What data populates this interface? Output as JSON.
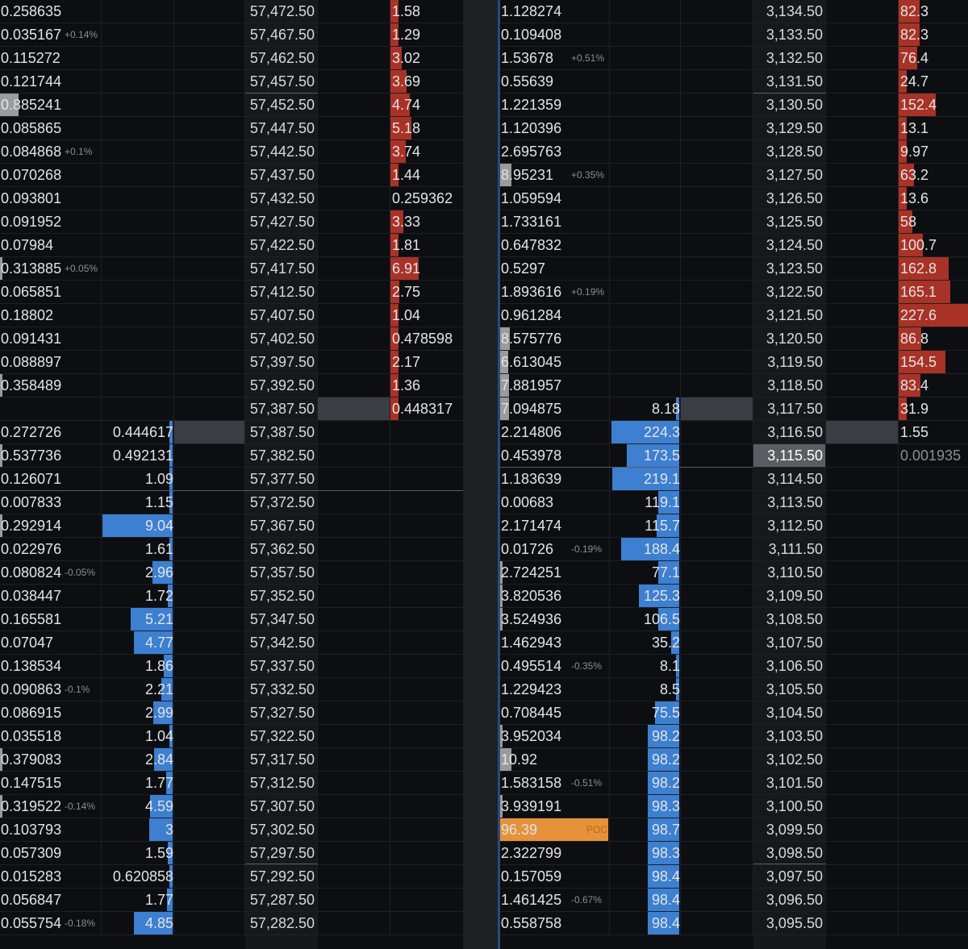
{
  "panels": [
    {
      "id": "left",
      "rows": [
        {
          "vol": "0.258635",
          "vol_pct": "",
          "bid": "",
          "price": "57,472.50",
          "ask": "1.58",
          "ask_frac": 0.05
        },
        {
          "vol": "0.035167",
          "vol_pct": "+0.14%",
          "bid": "",
          "price": "57,467.50",
          "ask": "1.29",
          "ask_frac": 0.04
        },
        {
          "vol": "0.115272",
          "vol_pct": "",
          "bid": "",
          "price": "57,462.50",
          "ask": "3.02",
          "ask_frac": 0.16
        },
        {
          "vol": "0.121744",
          "vol_pct": "",
          "bid": "",
          "price": "57,457.50",
          "ask": "3.69",
          "ask_frac": 0.22
        },
        {
          "vol": "0.885241",
          "vol_pct": "",
          "vol_frac": 0.18,
          "bid": "",
          "price": "57,452.50",
          "ask": "4.74",
          "ask_frac": 0.27
        },
        {
          "vol": "0.085865",
          "vol_pct": "",
          "bid": "",
          "price": "57,447.50",
          "ask": "5.18",
          "ask_frac": 0.29
        },
        {
          "vol": "0.084868",
          "vol_pct": "+0.1%",
          "bid": "",
          "price": "57,442.50",
          "ask": "3.74",
          "ask_frac": 0.21
        },
        {
          "vol": "0.070268",
          "vol_pct": "",
          "bid": "",
          "price": "57,437.50",
          "ask": "1.44",
          "ask_frac": 0.05
        },
        {
          "vol": "0.093801",
          "vol_pct": "",
          "bid": "",
          "price": "57,432.50",
          "ask": "0.259362",
          "ask_frac": 0
        },
        {
          "vol": "0.091952",
          "vol_pct": "",
          "bid": "",
          "price": "57,427.50",
          "ask": "3.33",
          "ask_frac": 0.18
        },
        {
          "vol": "0.07984",
          "vol_pct": "",
          "bid": "",
          "price": "57,422.50",
          "ask": "1.81",
          "ask_frac": 0.07
        },
        {
          "vol": "0.313885",
          "vol_pct": "+0.05%",
          "vol_frac": 0.02,
          "bid": "",
          "price": "57,417.50",
          "ask": "6.91",
          "ask_frac": 0.39
        },
        {
          "vol": "0.065851",
          "vol_pct": "",
          "bid": "",
          "price": "57,412.50",
          "ask": "2.75",
          "ask_frac": 0.12
        },
        {
          "vol": "0.18802",
          "vol_pct": "",
          "bid": "",
          "price": "57,407.50",
          "ask": "1.04",
          "ask_frac": 0.03
        },
        {
          "vol": "0.091431",
          "vol_pct": "",
          "bid": "",
          "price": "57,402.50",
          "ask": "0.478598",
          "ask_frac": 0.02
        },
        {
          "vol": "0.088897",
          "vol_pct": "",
          "bid": "",
          "price": "57,397.50",
          "ask": "2.17",
          "ask_frac": 0.11
        },
        {
          "vol": "0.358489",
          "vol_pct": "",
          "vol_frac": 0.02,
          "bid": "",
          "price": "57,392.50",
          "ask": "1.36",
          "ask_frac": 0.06
        },
        {
          "vol": "",
          "vol_pct": "",
          "bid": "",
          "price": "57,387.50",
          "ask": "0.448317",
          "ask_frac": 0.02,
          "ask_cursor": true
        },
        {
          "vol": "0.272726",
          "vol_pct": "",
          "bid": "0.444617",
          "bid_frac": 0.02,
          "bid_cursor": true,
          "price": "57,387.50",
          "ask": ""
        },
        {
          "vol": "0.537736",
          "vol_pct": "",
          "vol_frac": 0.02,
          "bid": "0.492131",
          "bid_frac": 0.02,
          "price": "57,382.50",
          "ask": ""
        },
        {
          "vol": "0.126071",
          "vol_pct": "",
          "bid": "1.09",
          "bid_frac": 0.03,
          "price": "57,377.50",
          "ask": ""
        },
        {
          "vol": "0.007833",
          "vol_pct": "",
          "bid": "1.15",
          "bid_frac": 0.03,
          "price": "57,372.50",
          "ask": ""
        },
        {
          "vol": "0.292914",
          "vol_pct": "",
          "vol_frac": 0.02,
          "bid": "9.04",
          "bid_frac": 0.99,
          "price": "57,367.50",
          "ask": ""
        },
        {
          "vol": "0.022976",
          "vol_pct": "",
          "bid": "1.61",
          "bid_frac": 0.04,
          "price": "57,362.50",
          "ask": ""
        },
        {
          "vol": "0.080824",
          "vol_pct": "-0.05%",
          "bid": "2.96",
          "bid_frac": 0.28,
          "price": "57,357.50",
          "ask": ""
        },
        {
          "vol": "0.038447",
          "vol_pct": "",
          "bid": "1.72",
          "bid_frac": 0.07,
          "price": "57,352.50",
          "ask": ""
        },
        {
          "vol": "0.165581",
          "vol_pct": "",
          "bid": "5.21",
          "bid_frac": 0.59,
          "price": "57,347.50",
          "ask": ""
        },
        {
          "vol": "0.07047",
          "vol_pct": "",
          "bid": "4.77",
          "bid_frac": 0.55,
          "price": "57,342.50",
          "ask": ""
        },
        {
          "vol": "0.138534",
          "vol_pct": "",
          "bid": "1.86",
          "bid_frac": 0.12,
          "price": "57,337.50",
          "ask": ""
        },
        {
          "vol": "0.090863",
          "vol_pct": "-0.1%",
          "bid": "2.21",
          "bid_frac": 0.16,
          "price": "57,332.50",
          "ask": ""
        },
        {
          "vol": "0.086915",
          "vol_pct": "",
          "bid": "2.99",
          "bid_frac": 0.27,
          "price": "57,327.50",
          "ask": ""
        },
        {
          "vol": "0.035518",
          "vol_pct": "",
          "bid": "1.04",
          "bid_frac": 0.03,
          "price": "57,322.50",
          "ask": ""
        },
        {
          "vol": "0.379083",
          "vol_pct": "",
          "vol_frac": 0.02,
          "bid": "2.84",
          "bid_frac": 0.26,
          "price": "57,317.50",
          "ask": ""
        },
        {
          "vol": "0.147515",
          "vol_pct": "",
          "bid": "1.77",
          "bid_frac": 0.09,
          "price": "57,312.50",
          "ask": ""
        },
        {
          "vol": "0.319522",
          "vol_pct": "-0.14%",
          "vol_frac": 0.02,
          "bid": "4.59",
          "bid_frac": 0.32,
          "price": "57,307.50",
          "ask": ""
        },
        {
          "vol": "0.103793",
          "vol_pct": "",
          "bid": "3",
          "bid_frac": 0.33,
          "price": "57,302.50",
          "ask": ""
        },
        {
          "vol": "0.057309",
          "vol_pct": "",
          "bid": "1.59",
          "bid_frac": 0.07,
          "price": "57,297.50",
          "ask": ""
        },
        {
          "vol": "0.015283",
          "vol_pct": "",
          "bid": "0.620858",
          "bid_frac": 0.02,
          "price": "57,292.50",
          "ask": ""
        },
        {
          "vol": "0.056847",
          "vol_pct": "",
          "bid": "1.77",
          "bid_frac": 0.08,
          "price": "57,287.50",
          "ask": ""
        },
        {
          "vol": "0.055754",
          "vol_pct": "-0.18%",
          "bid": "4.85",
          "bid_frac": 0.55,
          "price": "57,282.50",
          "ask": ""
        }
      ]
    },
    {
      "id": "right",
      "rows": [
        {
          "vol": "1.128274",
          "vol_pct": "",
          "bid": "",
          "price": "3,134.50",
          "ask": "82.3",
          "ask_frac": 0.3
        },
        {
          "vol": "0.109408",
          "vol_pct": "",
          "bid": "",
          "price": "3,133.50",
          "ask": "82.3",
          "ask_frac": 0.3
        },
        {
          "vol": "1.53678",
          "vol_pct": "+0.51%",
          "bid": "",
          "price": "3,132.50",
          "ask": "76.4",
          "ask_frac": 0.27
        },
        {
          "vol": "0.55639",
          "vol_pct": "",
          "bid": "",
          "price": "3,131.50",
          "ask": "24.7",
          "ask_frac": 0.06
        },
        {
          "vol": "1.221359",
          "vol_pct": "",
          "bid": "",
          "price": "3,130.50",
          "ask": "152.4",
          "ask_frac": 0.54
        },
        {
          "vol": "1.120396",
          "vol_pct": "",
          "bid": "",
          "price": "3,129.50",
          "ask": "13.1",
          "ask_frac": 0.03
        },
        {
          "vol": "2.695763",
          "vol_pct": "",
          "bid": "",
          "price": "3,128.50",
          "ask": "9.97",
          "ask_frac": 0.02
        },
        {
          "vol": "8.95231",
          "vol_pct": "+0.35%",
          "vol_frac": 0.1,
          "bid": "",
          "price": "3,127.50",
          "ask": "63.2",
          "ask_frac": 0.22
        },
        {
          "vol": "1.059594",
          "vol_pct": "",
          "bid": "",
          "price": "3,126.50",
          "ask": "13.6",
          "ask_frac": 0.03
        },
        {
          "vol": "1.733161",
          "vol_pct": "",
          "bid": "",
          "price": "3,125.50",
          "ask": "58",
          "ask_frac": 0.2
        },
        {
          "vol": "0.647832",
          "vol_pct": "",
          "bid": "",
          "price": "3,124.50",
          "ask": "100.7",
          "ask_frac": 0.35
        },
        {
          "vol": "0.5297",
          "vol_pct": "",
          "bid": "",
          "price": "3,123.50",
          "ask": "162.8",
          "ask_frac": 0.72
        },
        {
          "vol": "1.893616",
          "vol_pct": "+0.19%",
          "bid": "",
          "price": "3,122.50",
          "ask": "165.1",
          "ask_frac": 0.74
        },
        {
          "vol": "0.961284",
          "vol_pct": "",
          "bid": "",
          "price": "3,121.50",
          "ask": "227.6",
          "ask_frac": 1.0
        },
        {
          "vol": "8.575776",
          "vol_pct": "",
          "vol_frac": 0.09,
          "bid": "",
          "price": "3,120.50",
          "ask": "86.8",
          "ask_frac": 0.32
        },
        {
          "vol": "6.613045",
          "vol_pct": "",
          "vol_frac": 0.07,
          "bid": "",
          "price": "3,119.50",
          "ask": "154.5",
          "ask_frac": 0.67
        },
        {
          "vol": "7.881957",
          "vol_pct": "",
          "vol_frac": 0.08,
          "bid": "",
          "price": "3,118.50",
          "ask": "83.4",
          "ask_frac": 0.31
        },
        {
          "vol": "7.094875",
          "vol_pct": "",
          "vol_frac": 0.08,
          "bid": "8.18",
          "bid_frac": 0.03,
          "price": "3,117.50",
          "ask": "31.9",
          "ask_frac": 0.12,
          "price_cursor": true
        },
        {
          "vol": "2.214806",
          "vol_pct": "",
          "bid": "224.3",
          "bid_frac": 0.98,
          "price": "3,116.50",
          "ask": "1.55",
          "ask_frac": 0,
          "ask_cursor": true
        },
        {
          "vol": "0.453978",
          "vol_pct": "",
          "bid": "173.5",
          "bid_frac": 0.76,
          "price": "3,115.50",
          "price_hl": true,
          "ask": "0.001935",
          "ask_muted": true
        },
        {
          "vol": "1.183639",
          "vol_pct": "",
          "bid": "219.1",
          "bid_frac": 0.96,
          "price": "3,114.50",
          "ask": ""
        },
        {
          "vol": "0.00683",
          "vol_pct": "",
          "bid": "119.1",
          "bid_frac": 0.3,
          "price": "3,113.50",
          "ask": ""
        },
        {
          "vol": "2.171474",
          "vol_pct": "",
          "bid": "115.7",
          "bid_frac": 0.32,
          "price": "3,112.50",
          "ask": ""
        },
        {
          "vol": "0.01726",
          "vol_pct": "-0.19%",
          "bid": "188.4",
          "bid_frac": 0.84,
          "price": "3,111.50",
          "ask": ""
        },
        {
          "vol": "2.724251",
          "vol_pct": "",
          "vol_frac": 0.01,
          "bid": "77.1",
          "bid_frac": 0.3,
          "price": "3,110.50",
          "ask": ""
        },
        {
          "vol": "3.820536",
          "vol_pct": "",
          "vol_frac": 0.01,
          "bid": "125.3",
          "bid_frac": 0.58,
          "price": "3,109.50",
          "ask": ""
        },
        {
          "vol": "3.524936",
          "vol_pct": "",
          "vol_frac": 0.01,
          "bid": "106.5",
          "bid_frac": 0.3,
          "price": "3,108.50",
          "ask": ""
        },
        {
          "vol": "1.462943",
          "vol_pct": "",
          "bid": "35.2",
          "bid_frac": 0.12,
          "price": "3,107.50",
          "ask": ""
        },
        {
          "vol": "0.495514",
          "vol_pct": "-0.35%",
          "bid": "8.1",
          "bid_frac": 0.03,
          "price": "3,106.50",
          "ask": ""
        },
        {
          "vol": "1.229423",
          "vol_pct": "",
          "bid": "8.5",
          "bid_frac": 0.03,
          "price": "3,105.50",
          "ask": ""
        },
        {
          "vol": "0.708445",
          "vol_pct": "",
          "bid": "75.5",
          "bid_frac": 0.35,
          "price": "3,104.50",
          "ask": ""
        },
        {
          "vol": "3.952034",
          "vol_pct": "",
          "vol_frac": 0.01,
          "bid": "98.2",
          "bid_frac": 0.45,
          "price": "3,103.50",
          "ask": ""
        },
        {
          "vol": "10.92",
          "vol_pct": "",
          "vol_frac": 0.1,
          "bid": "98.2",
          "bid_frac": 0.45,
          "price": "3,102.50",
          "ask": ""
        },
        {
          "vol": "1.583158",
          "vol_pct": "-0.51%",
          "bid": "98.2",
          "bid_frac": 0.45,
          "price": "3,101.50",
          "ask": ""
        },
        {
          "vol": "3.939191",
          "vol_pct": "",
          "vol_frac": 0.01,
          "bid": "98.3",
          "bid_frac": 0.45,
          "price": "3,100.50",
          "ask": ""
        },
        {
          "vol": "96.39",
          "vol_pct": "",
          "vol_poc": true,
          "poc_label": "POC",
          "bid": "98.7",
          "bid_frac": 0.45,
          "price": "3,099.50",
          "ask": ""
        },
        {
          "vol": "2.322799",
          "vol_pct": "",
          "bid": "98.3",
          "bid_frac": 0.45,
          "price": "3,098.50",
          "ask": ""
        },
        {
          "vol": "0.157059",
          "vol_pct": "",
          "bid": "98.4",
          "bid_frac": 0.45,
          "price": "3,097.50",
          "ask": ""
        },
        {
          "vol": "1.461425",
          "vol_pct": "-0.67%",
          "bid": "98.4",
          "bid_frac": 0.45,
          "price": "3,096.50",
          "ask": ""
        },
        {
          "vol": "0.558758",
          "vol_pct": "",
          "bid": "98.4",
          "bid_frac": 0.45,
          "price": "3,095.50",
          "ask": ""
        }
      ]
    }
  ],
  "colors": {
    "background": "#0d0e12",
    "ask_bar": "#a93226",
    "bid_bar": "#3d7fd0",
    "poc": "#e5923b",
    "cursor_cell": "#3a3d44",
    "price_column": "#17181c",
    "highlight_price": "#5b5d63",
    "volume_bar": "#9a9b9e"
  }
}
